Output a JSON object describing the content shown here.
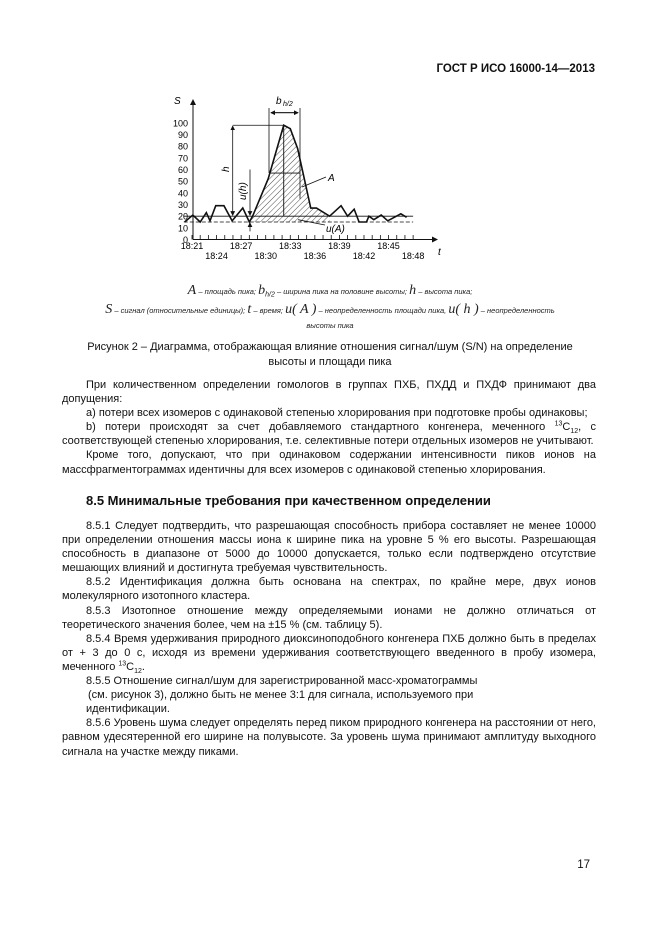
{
  "header": {
    "doc_id": "ГОСТ Р ИСО 16000-14—2013"
  },
  "chart_data": {
    "type": "line",
    "title": "",
    "xlabel": "t",
    "ylabel": "S",
    "ylim": [
      0,
      100
    ],
    "yticks": [
      0,
      10,
      20,
      30,
      40,
      50,
      60,
      70,
      80,
      90,
      100
    ],
    "xtick_labels": [
      "18:21",
      "18:24",
      "18:27",
      "18:30",
      "18:33",
      "18:36",
      "18:39",
      "18:42",
      "18:45",
      "18:48"
    ],
    "series": [
      {
        "x_minutes_after_18h": [
          20.1,
          21.1,
          22,
          22.75,
          23.2,
          23.9,
          24.9,
          25.9,
          27.2,
          28,
          28.4,
          30.3,
          32.2,
          33,
          33.9,
          35.5,
          36.2,
          37.8,
          39.2,
          40,
          40.8,
          41.4,
          42.3,
          42.6,
          43.2,
          44.1,
          44.9,
          46.5,
          47.2
        ],
        "y": [
          15,
          21,
          15,
          23,
          16,
          29,
          29,
          16,
          27,
          15,
          20,
          52,
          98,
          95,
          78,
          27,
          27,
          20,
          29,
          20,
          26,
          15,
          15,
          20,
          17,
          21,
          16,
          22,
          19
        ]
      }
    ],
    "reference_lines": {
      "solid": 20,
      "dashed": 15,
      "half_height": 57
    },
    "annotations": {
      "peak_area": "A",
      "half_width": "b",
      "half_width_sub": "h/2",
      "height": "h",
      "height_uncertainty": "u(h)",
      "area_uncertainty": "u(A)"
    },
    "grid": false
  },
  "legend": {
    "A_sym": "A",
    "A_text": "– площадь пика;",
    "b_sym": "b",
    "b_sub": "h/2",
    "b_text": "– ширина пика на половине высоты;",
    "h_sym": "h",
    "h_text": "– высота пика;",
    "S_sym": "S",
    "S_text": "– сигнал (относительные единицы);",
    "t_sym": "t",
    "t_text": "– время;",
    "uA_sym": "u( A )",
    "uA_text": "– неопределенность площади пика,",
    "uh_sym": "u( h )",
    "uh_text": "– неопределенность",
    "uh_text2": "высоты пика"
  },
  "caption": {
    "line1": "Рисунок 2 – Диаграмма, отображающая влияние отношения сигнал/шум (S/N) на определение",
    "line2": "высоты и площади пика"
  },
  "paragraphs1": {
    "p1": "При количественном определении гомологов в группах ПХБ, ПХДД и ПХДФ принимают два допущения:",
    "p2": "а) потери всех изомеров с одинаковой степенью хлорирования при подготовке пробы одинаковы;",
    "p3a": "b) потери происходят за счет добавляемого стандартного конгенера, меченного ",
    "p3sup": "13",
    "p3c": "C",
    "p3sub": "12",
    "p3b": ", с соответствующей степенью хлорирования, т.е. селективные потери отдельных изомеров не учитывают.",
    "p4": "Кроме того, допускают, что при одинаковом содержании интенсивности пиков ионов на массфрагментограммах идентичны для всех изомеров с одинаковой степенью хлорирования."
  },
  "section": {
    "title": "8.5 Минимальные требования при качественном определении"
  },
  "paragraphs2": {
    "p851": "8.5.1 Следует подтвердить, что разрешающая способность прибора составляет не менее 10000 при определении отношения массы иона к ширине пика на уровне 5 % его высоты. Разрешающая способность в диапазоне от 5000 до 10000 допускается, только если подтверждено отсутствие мешающих влияний и достигнута требуемая чувствительность.",
    "p852": "8.5.2 Идентификация должна быть основана на спектрах, по крайне мере, двух ионов молекулярного изотопного кластера.",
    "p853": "8.5.3 Изотопное отношение между определяемыми ионами не должно отличаться от теоретического значения более, чем на ±15 % (см. таблицу 5).",
    "p854a": "8.5.4 Время удерживания природного диоксиноподобного конгенера ПХБ должно быть в пределах от + 3 до 0 с, исходя из времени удерживания соответствующего введенного в пробу изомера, меченного ",
    "p854sup": "13",
    "p854c": "C",
    "p854sub": "12",
    "p854b": ".",
    "p855a": "8.5.5 Отношение сигнал/шум для зарегистрированной масс-хроматограммы",
    "p855b": "(см. рисунок 3), должно быть не менее 3:1 для сигнала, используемого при",
    "p855c": "идентификации.",
    "p856": "8.5.6 Уровень шума следует определять перед пиком природного конгенера на расстоянии от него, равном удесятеренной его ширине на полувысоте. За уровень шума принимают амплитуду выходного сигнала на участке между пиками."
  },
  "page_number": "17"
}
